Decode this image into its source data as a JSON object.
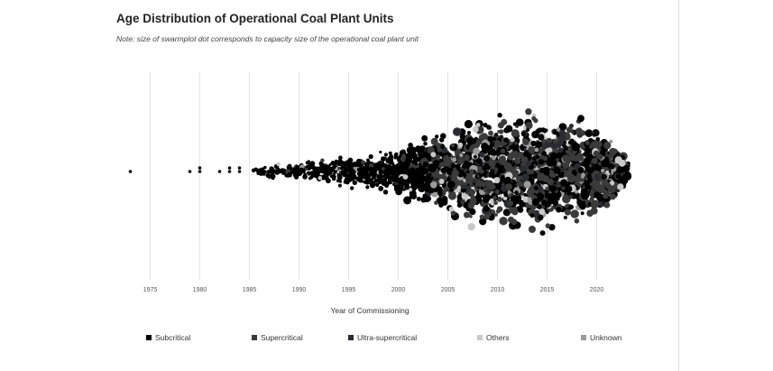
{
  "chart_data": {
    "type": "scatter",
    "subtype": "beeswarm",
    "title": "Age Distribution of Operational Coal Plant Units",
    "subtitle": "Note: size of swarmplot dot corresponds to capacity size of the operational coal plant unit",
    "xlabel": "Year of Commissioning",
    "xlim": [
      1972,
      2025
    ],
    "xticks": [
      1975,
      1980,
      1985,
      1990,
      1995,
      2000,
      2005,
      2010,
      2015,
      2020
    ],
    "grid": true,
    "legend_position": "bottom",
    "series": [
      {
        "name": "Subcritical",
        "color": "#000000"
      },
      {
        "name": "Supercritical",
        "color": "#3a3a3a"
      },
      {
        "name": "Ultra-supercritical",
        "color": "#2b2b33"
      },
      {
        "name": "Others",
        "color": "#c9c9c9"
      },
      {
        "name": "Unknown",
        "color": "#9a9a9a"
      }
    ],
    "sparse_points": [
      {
        "year": 1973,
        "category": "Subcritical"
      },
      {
        "year": 1979,
        "category": "Subcritical"
      },
      {
        "year": 1980,
        "category": "Subcritical"
      },
      {
        "year": 1980,
        "category": "Subcritical"
      },
      {
        "year": 1982,
        "category": "Subcritical"
      },
      {
        "year": 1983,
        "category": "Subcritical"
      },
      {
        "year": 1983,
        "category": "Subcritical"
      },
      {
        "year": 1984,
        "category": "Subcritical"
      },
      {
        "year": 1984,
        "category": "Subcritical"
      }
    ],
    "density_profile": [
      {
        "year": 1985,
        "spread": 0.08
      },
      {
        "year": 1988,
        "spread": 0.12
      },
      {
        "year": 1990,
        "spread": 0.16
      },
      {
        "year": 1995,
        "spread": 0.26
      },
      {
        "year": 2000,
        "spread": 0.4
      },
      {
        "year": 2003,
        "spread": 0.6
      },
      {
        "year": 2006,
        "spread": 0.85
      },
      {
        "year": 2010,
        "spread": 0.98
      },
      {
        "year": 2014,
        "spread": 1.0
      },
      {
        "year": 2018,
        "spread": 0.9
      },
      {
        "year": 2021,
        "spread": 0.62
      },
      {
        "year": 2023,
        "spread": 0.2
      }
    ]
  }
}
